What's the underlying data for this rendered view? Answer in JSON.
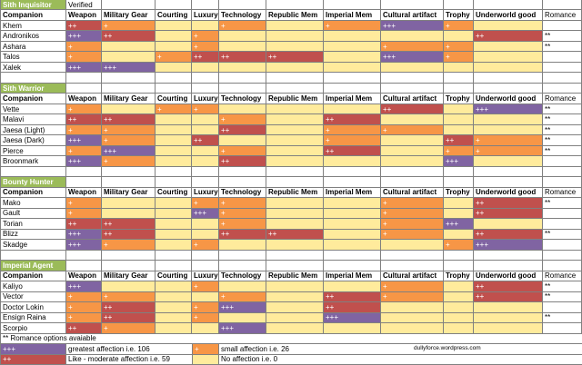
{
  "header_row": {
    "companion": "Companion",
    "categories": [
      "Weapon",
      "Military Gear",
      "Courting",
      "Luxury",
      "Technology",
      "Republic Mem",
      "Imperial Mem",
      "Cultural artifact",
      "Trophy",
      "Underworld good"
    ],
    "romance": "Romance"
  },
  "level_colors": {
    "+++": "#8064A2",
    "++": "#C0504D",
    "+": "#F79646",
    "none": "#FFEB9C"
  },
  "section_color": "#9BBB59",
  "sections": [
    {
      "title": "Sith Inquisitor",
      "status": "Verified",
      "companions": [
        {
          "name": "Khem",
          "gifts": [
            "++",
            "+",
            "",
            "",
            "+",
            "",
            "+",
            "+++",
            "+",
            ""
          ],
          "romance": ""
        },
        {
          "name": "Andronikos",
          "gifts": [
            "+++",
            "++",
            "",
            "+",
            "",
            "",
            "",
            "",
            "",
            "++"
          ],
          "romance": "**"
        },
        {
          "name": "Ashara",
          "gifts": [
            "+",
            "",
            "",
            "+",
            "",
            "",
            "",
            "+",
            "+",
            ""
          ],
          "romance": "**"
        },
        {
          "name": "Talos",
          "gifts": [
            "+",
            "",
            "+",
            "++",
            "++",
            "++",
            "",
            "+++",
            "+",
            ""
          ],
          "romance": ""
        },
        {
          "name": "Xalek",
          "gifts": [
            "+++",
            "+++",
            "",
            "",
            "",
            "",
            "",
            "",
            "",
            ""
          ],
          "romance": ""
        }
      ]
    },
    {
      "title": "Sith Warrior",
      "companions": [
        {
          "name": "Vette",
          "gifts": [
            "+",
            "",
            "+",
            "+",
            "",
            "",
            "",
            "++",
            "",
            "+++"
          ],
          "romance": "**"
        },
        {
          "name": "Malavi",
          "gifts": [
            "++",
            "++",
            "",
            "",
            "+",
            "",
            "++",
            "",
            "",
            ""
          ],
          "romance": "**"
        },
        {
          "name": "Jaesa (Light)",
          "gifts": [
            "+",
            "+",
            "",
            "",
            "++",
            "",
            "+",
            "+",
            "",
            ""
          ],
          "romance": "**"
        },
        {
          "name": "Jaesa (Dark)",
          "gifts": [
            "+++",
            "+",
            "",
            "++",
            "",
            "",
            "+",
            "",
            "++",
            "+"
          ],
          "romance": "**"
        },
        {
          "name": "Pierce",
          "gifts": [
            "+",
            "+++",
            "",
            "",
            "+",
            "",
            "++",
            "",
            "+",
            "+"
          ],
          "romance": "**"
        },
        {
          "name": "Broonmark",
          "gifts": [
            "+++",
            "+",
            "",
            "",
            "++",
            "",
            "",
            "",
            "+++",
            ""
          ],
          "romance": ""
        }
      ]
    },
    {
      "title": "Bounty Hunter",
      "companions": [
        {
          "name": "Mako",
          "gifts": [
            "+",
            "",
            "",
            "+",
            "+",
            "",
            "",
            "+",
            "",
            "++"
          ],
          "romance": "**"
        },
        {
          "name": "Gault",
          "gifts": [
            "+",
            "",
            "",
            "+++",
            "+",
            "",
            "",
            "+",
            "",
            "++"
          ],
          "romance": ""
        },
        {
          "name": "Torian",
          "gifts": [
            "++",
            "++",
            "",
            "",
            "+",
            "",
            "",
            "+",
            "+++",
            ""
          ],
          "romance": ""
        },
        {
          "name": "Blizz",
          "gifts": [
            "+++",
            "++",
            "",
            "",
            "++",
            "++",
            "",
            "+",
            "",
            "++"
          ],
          "romance": "**"
        },
        {
          "name": "Skadge",
          "gifts": [
            "+++",
            "+",
            "",
            "+",
            "",
            "",
            "",
            "",
            "+",
            "+++"
          ],
          "romance": ""
        }
      ]
    },
    {
      "title": "Imperial Agent",
      "companions": [
        {
          "name": "Kaliyo",
          "gifts": [
            "+++",
            "",
            "",
            "+",
            "",
            "",
            "",
            "+",
            "",
            "++"
          ],
          "romance": "**"
        },
        {
          "name": "Vector",
          "gifts": [
            "+",
            "+",
            "",
            "",
            "+",
            "",
            "++",
            "+",
            "",
            "++"
          ],
          "romance": "**"
        },
        {
          "name": "Doctor Lokin",
          "gifts": [
            "+",
            "++",
            "",
            "+",
            "+++",
            "",
            "++",
            "",
            "",
            ""
          ],
          "romance": ""
        },
        {
          "name": "Ensign Raina",
          "gifts": [
            "+",
            "++",
            "",
            "+",
            "",
            "",
            "+++",
            "",
            "",
            ""
          ],
          "romance": "**"
        },
        {
          "name": "Scorpio",
          "gifts": [
            "++",
            "+",
            "",
            "",
            "+++",
            "",
            "",
            "",
            "",
            ""
          ],
          "romance": ""
        }
      ]
    }
  ],
  "footnote": "** Romance options avaiable",
  "legend": {
    "greatest": {
      "code": "+++",
      "text": "greatest affection i.e. 106"
    },
    "moderate": {
      "code": "++",
      "text": "Like - moderate affection i.e. 59"
    },
    "small": {
      "code": "+",
      "text": "small affection i.e. 26"
    },
    "none": {
      "code": "",
      "text": "No affection i.e. 0"
    }
  },
  "credit": "dullyforce.wordpress.com"
}
